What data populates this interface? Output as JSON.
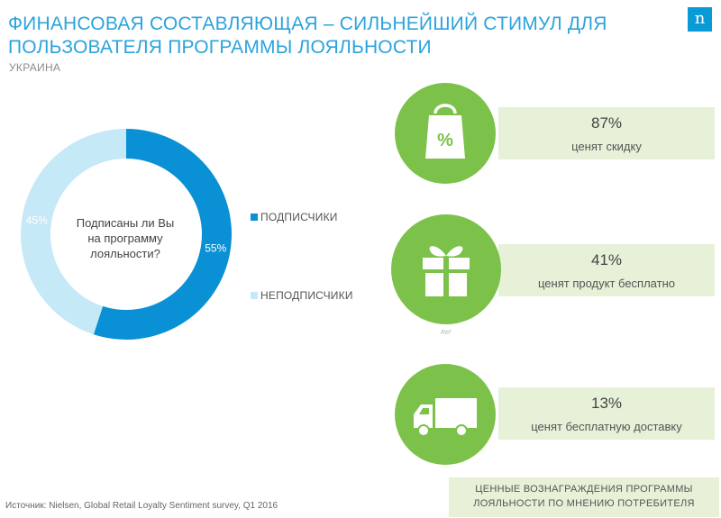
{
  "title": {
    "line1": "ФИНАНСОВАЯ СОСТАВЛЯЮЩАЯ – СИЛЬНЕЙШИЙ СТИМУЛ ДЛЯ",
    "line2": "ПОЛЬЗОВАТЕЛЯ ПРОГРАММЫ ЛОЯЛЬНОСТИ"
  },
  "subtitle": "УКРАИНА",
  "logo": "n",
  "colors": {
    "title": "#2ba3dc",
    "subscribers": "#0a91d5",
    "non_subscribers": "#c6e9f8",
    "green": "#7cc24a",
    "green_light": "#e6f1d8"
  },
  "chart_data": {
    "type": "pie",
    "donut": true,
    "center_text": [
      "Подписаны ли Вы",
      "на программу",
      "лояльности?"
    ],
    "slices": [
      {
        "name": "ПОДПИСЧИКИ",
        "value": 55,
        "label": "55%"
      },
      {
        "name": "НЕПОДПИСЧИКИ",
        "value": 45,
        "label": "45%"
      }
    ],
    "legend_position": "right"
  },
  "rewards": [
    {
      "icon": "shopping-bag-percent-icon",
      "value": "87%",
      "text": "ценят скидку"
    },
    {
      "icon": "gift-icon",
      "value": "41%",
      "text": "ценят продукт бесплатно"
    },
    {
      "icon": "delivery-truck-icon",
      "value": "13%",
      "text": "ценят бесплатную доставку"
    }
  ],
  "tiny_mark": "Ref",
  "caption": {
    "line1": "ЦЕННЫЕ ВОЗНАГРАЖДЕНИЯ ПРОГРАММЫ",
    "line2": "ЛОЯЛЬНОСТИ ПО МНЕНИЮ ПОТРЕБИТЕЛЯ"
  },
  "source": "Источник: Nielsen, Global Retail Loyalty Sentiment survey, Q1 2016"
}
